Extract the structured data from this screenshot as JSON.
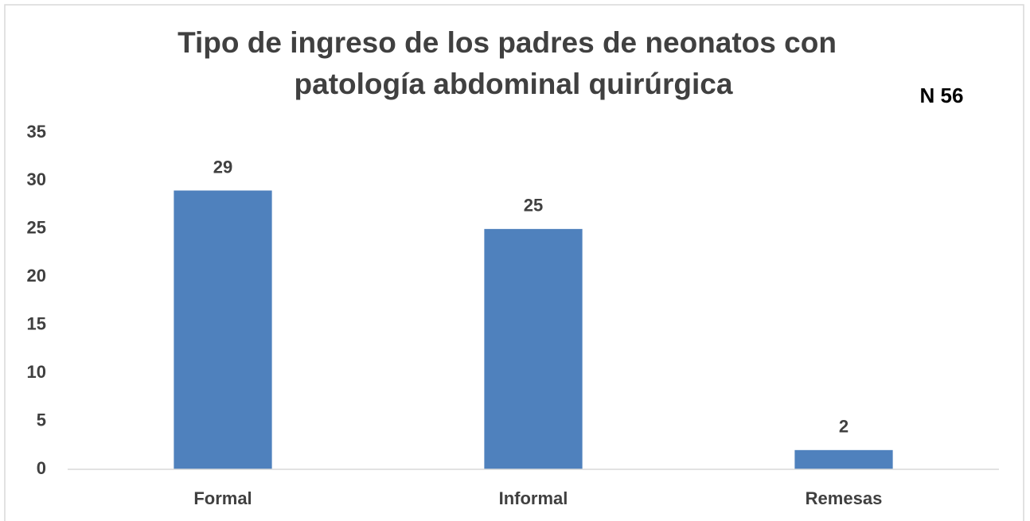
{
  "chart_data": {
    "type": "bar",
    "title": [
      "Tipo de ingreso de los padres de neonatos con",
      "patología abdominal quirúrgica"
    ],
    "annotation": "N 56",
    "categories": [
      "Formal",
      "Informal",
      "Remesas"
    ],
    "values": [
      29,
      25,
      2
    ],
    "color": "#4f81bd",
    "ylim": [
      0,
      35
    ],
    "yticks": [
      0,
      5,
      10,
      15,
      20,
      25,
      30,
      35
    ],
    "grid": false,
    "data_labels": true
  }
}
